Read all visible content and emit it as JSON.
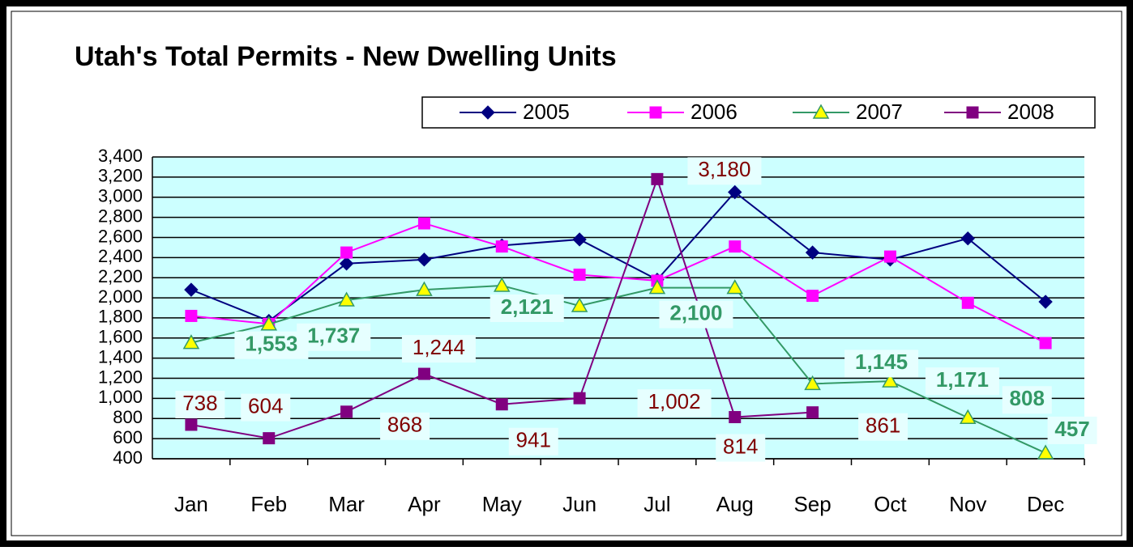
{
  "chart_data": {
    "type": "line",
    "title": "Utah's Total Permits - New Dwelling Units",
    "categories": [
      "Jan",
      "Feb",
      "Mar",
      "Apr",
      "May",
      "Jun",
      "Jul",
      "Aug",
      "Sep",
      "Oct",
      "Nov",
      "Dec"
    ],
    "ylim": [
      400,
      3400
    ],
    "yticks": [
      400,
      600,
      800,
      {
        "value": 1000,
        "label": "1,000"
      },
      {
        "value": 1200,
        "label": "1,200"
      },
      {
        "value": 1400,
        "label": "1,400"
      },
      {
        "value": 1600,
        "label": "1,600"
      },
      {
        "value": 1800,
        "label": "1,800"
      },
      {
        "value": 2000,
        "label": "2,000"
      },
      {
        "value": 2200,
        "label": "2,200"
      },
      {
        "value": 2400,
        "label": "2,400"
      },
      {
        "value": 2600,
        "label": "2,600"
      },
      {
        "value": 2800,
        "label": "2,800"
      },
      {
        "value": 3000,
        "label": "3,000"
      },
      {
        "value": 3200,
        "label": "3,200"
      },
      {
        "value": 3400,
        "label": "3,400"
      }
    ],
    "grid": true,
    "legend": "top-right",
    "series": [
      {
        "name": "2005",
        "color": "#000080",
        "marker": "diamond",
        "values": [
          2080,
          1770,
          2340,
          2380,
          2520,
          2580,
          2180,
          3050,
          2450,
          2380,
          2590,
          1960
        ]
      },
      {
        "name": "2006",
        "color": "#ff00ff",
        "marker": "square",
        "values": [
          1820,
          1740,
          2450,
          2740,
          2510,
          2230,
          2170,
          2510,
          2020,
          2410,
          1950,
          1550
        ]
      },
      {
        "name": "2007",
        "color": "#339966",
        "marker": "triangle",
        "values": [
          1553,
          1737,
          1976,
          2080,
          2121,
          1920,
          2100,
          2100,
          1145,
          1171,
          808,
          457
        ],
        "value_labels": [
          "1,553",
          "1,737",
          null,
          null,
          "2,121",
          null,
          "2,100",
          null,
          "1,145",
          "1,171",
          "808",
          "457"
        ]
      },
      {
        "name": "2008",
        "color": "#800080",
        "marker": "square",
        "values": [
          738,
          604,
          868,
          1244,
          941,
          1002,
          3180,
          814,
          861,
          null,
          null,
          null
        ],
        "value_labels": [
          "738",
          "604",
          "868",
          "1,244",
          "941",
          "1,002",
          "3,180",
          "814",
          "861",
          null,
          null,
          null
        ]
      }
    ]
  }
}
